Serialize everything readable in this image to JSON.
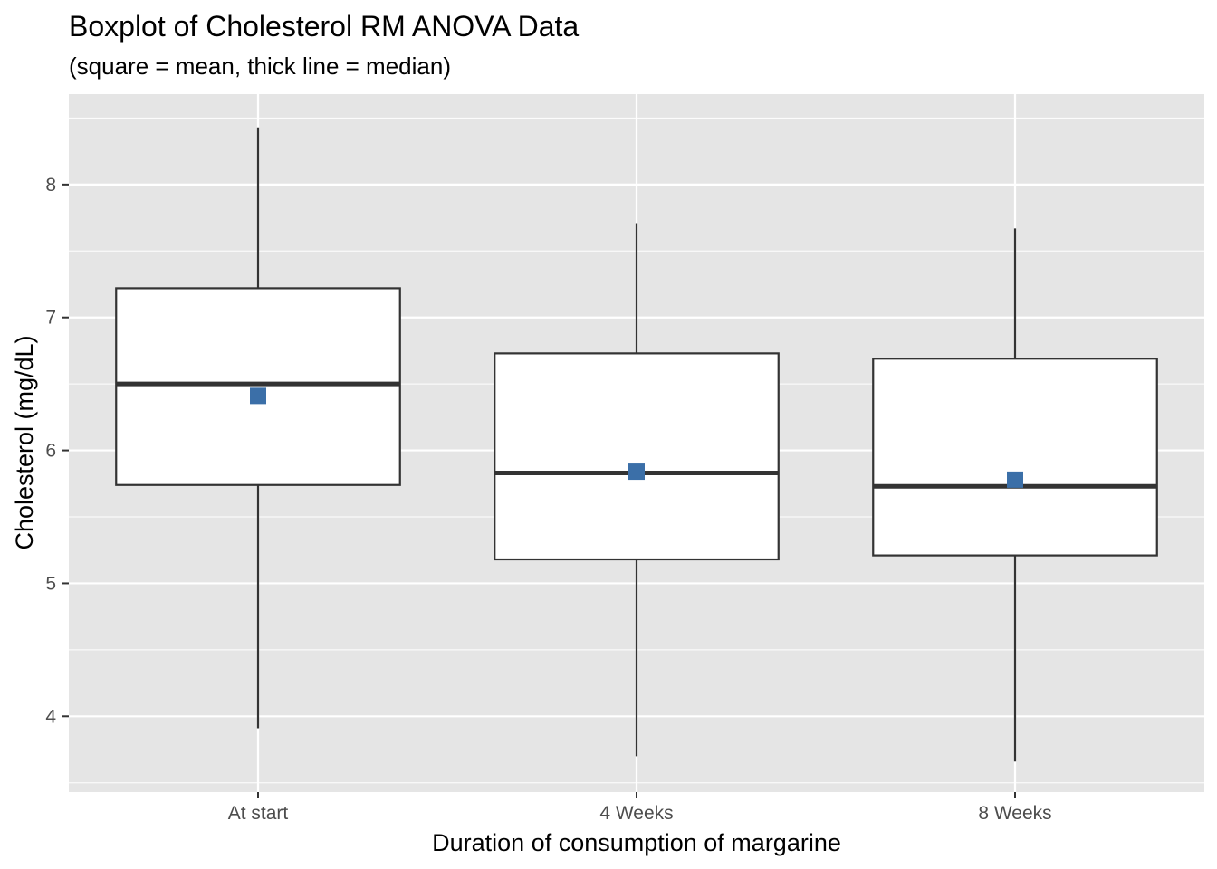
{
  "chart_data": {
    "type": "boxplot",
    "title": "Boxplot of Cholesterol RM ANOVA Data",
    "subtitle": "(square = mean, thick line = median)",
    "xlabel": "Duration of consumption of margarine",
    "ylabel": "Cholesterol (mg/dL)",
    "ylim": [
      3.43,
      8.68
    ],
    "yticks": [
      4,
      5,
      6,
      7,
      8
    ],
    "categories": [
      "At start",
      "4 Weeks",
      "8 Weeks"
    ],
    "boxes": [
      {
        "category": "At start",
        "min": 3.91,
        "q1": 5.74,
        "median": 6.5,
        "q3": 7.22,
        "max": 8.43,
        "mean": 6.41
      },
      {
        "category": "4 Weeks",
        "min": 3.7,
        "q1": 5.18,
        "median": 5.83,
        "q3": 6.73,
        "max": 7.71,
        "mean": 5.84
      },
      {
        "category": "8 Weeks",
        "min": 3.66,
        "q1": 5.21,
        "median": 5.73,
        "q3": 6.69,
        "max": 7.67,
        "mean": 5.78
      }
    ],
    "grid": true,
    "legend": "none",
    "colors": {
      "panel": "#e5e5e5",
      "grid": "#ffffff",
      "box_fill": "#ffffff",
      "box_line": "#333333",
      "mean_marker": "#3b6fa8"
    }
  }
}
